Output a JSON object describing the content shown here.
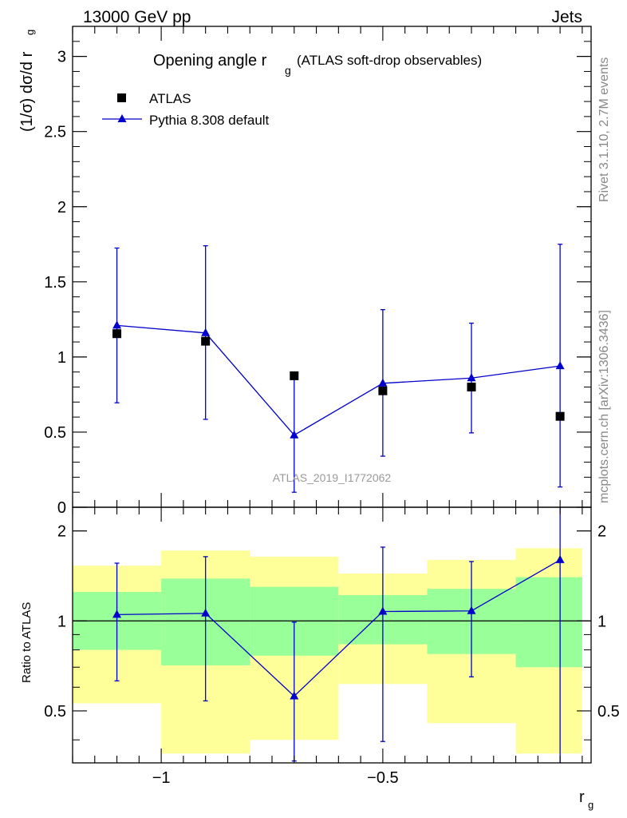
{
  "header": {
    "energy_label": "13000 GeV pp",
    "process_label": "Jets"
  },
  "side_text": {
    "rivet_info": "Rivet 3.1.10,  2.7M events",
    "mcplots_info": "mcplots.cern.ch [arXiv:1306.3436]"
  },
  "analysis_id": "ATLAS_2019_I1772062",
  "chart_data": [
    {
      "type": "scatter",
      "panel": "main",
      "title_main": "Opening angle r",
      "title_sub": "g",
      "title_rest": "(ATLAS soft-drop observables)",
      "ylabel": "(1/σ) dσ/d r",
      "ylabel_sub": "g",
      "xlim": [
        -1.2,
        -0.03
      ],
      "ylim": [
        0,
        3.2
      ],
      "yticks": [
        0,
        0.5,
        1,
        1.5,
        2,
        2.5,
        3
      ],
      "ytick_labels": [
        "0",
        "0.5",
        "1",
        "1.5",
        "2",
        "2.5",
        "3"
      ],
      "legend": [
        "ATLAS",
        "Pythia 8.308 default"
      ],
      "legend_position": "top-left",
      "series": [
        {
          "name": "ATLAS",
          "marker": "square",
          "color": "#000000",
          "x": [
            -1.1,
            -0.9,
            -0.7,
            -0.5,
            -0.3,
            -0.1
          ],
          "y": [
            1.155,
            1.105,
            0.875,
            0.775,
            0.8,
            0.605
          ]
        },
        {
          "name": "Pythia 8.308 default",
          "marker": "triangle",
          "color": "#0000cc",
          "x": [
            -1.1,
            -0.9,
            -0.7,
            -0.5,
            -0.3,
            -0.1
          ],
          "y": [
            1.21,
            1.16,
            0.48,
            0.825,
            0.86,
            0.94
          ],
          "yerr_low": [
            0.515,
            0.575,
            0.38,
            0.485,
            0.365,
            0.805
          ],
          "yerr_high": [
            0.515,
            0.58,
            0.38,
            0.49,
            0.365,
            0.81
          ]
        }
      ]
    },
    {
      "type": "scatter",
      "panel": "ratio",
      "ylabel": "Ratio to ATLAS",
      "xlabel": "r",
      "xlabel_sub": "g",
      "xlim": [
        -1.2,
        -0.03
      ],
      "ylim": [
        0.335,
        2.4
      ],
      "yscale": "log",
      "xticks": [
        -1,
        -0.5
      ],
      "xtick_labels": [
        "−1",
        "−0.5"
      ],
      "yticks": [
        0.5,
        1,
        2
      ],
      "ytick_labels": [
        "0.5",
        "1",
        "2"
      ],
      "bands": {
        "x_edges": [
          -1.2,
          -1.0,
          -0.8,
          -0.6,
          -0.4,
          -0.2,
          -0.05
        ],
        "outer_low": [
          0.53,
          0.36,
          0.4,
          0.615,
          0.455,
          0.36
        ],
        "outer_high": [
          1.53,
          1.72,
          1.64,
          1.44,
          1.6,
          1.75
        ],
        "inner_low": [
          0.8,
          0.71,
          0.765,
          0.835,
          0.775,
          0.7
        ],
        "inner_high": [
          1.25,
          1.385,
          1.3,
          1.22,
          1.28,
          1.4
        ],
        "outer_color": "#ffff99",
        "inner_color": "#99ff99"
      },
      "series": [
        {
          "name": "Pythia 8.308 default",
          "marker": "triangle",
          "color": "#0000cc",
          "x": [
            -1.1,
            -0.9,
            -0.7,
            -0.5,
            -0.3,
            -0.1
          ],
          "y": [
            1.05,
            1.06,
            0.56,
            1.075,
            1.08,
            1.6
          ],
          "yerr_low": [
            0.42,
            0.52,
            0.22,
            0.68,
            0.43,
            1.3
          ],
          "yerr_high": [
            0.51,
            0.58,
            0.43,
            0.69,
            0.5,
            1.3
          ]
        }
      ]
    }
  ]
}
